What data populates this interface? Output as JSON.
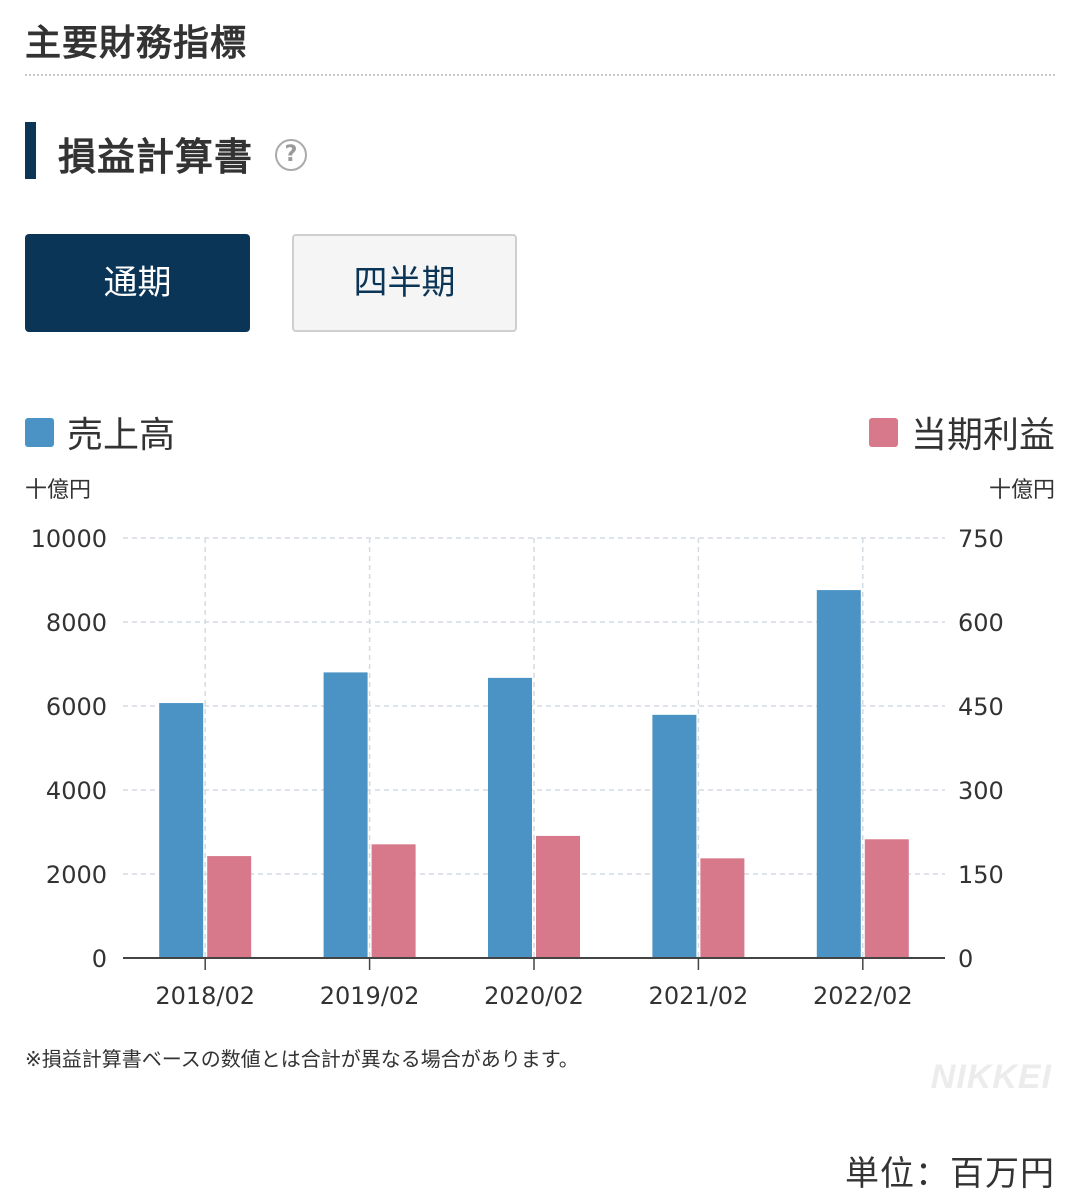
{
  "page_title": "主要財務指標",
  "section": {
    "title": "損益計算書",
    "help_icon": "help-question-icon"
  },
  "tabs": [
    {
      "label": "通期",
      "active": true
    },
    {
      "label": "四半期",
      "active": false
    }
  ],
  "colors": {
    "sales": "#4a93c4",
    "profit": "#d7798a",
    "navy": "#0b3557"
  },
  "footnote": "※損益計算書ベースの数値とは合計が異なる場合があります。",
  "logo_text": "NIKKEI",
  "unit_note": "単位：百万円",
  "chart_data": {
    "type": "bar",
    "categories": [
      "2018/02",
      "2019/02",
      "2020/02",
      "2021/02",
      "2022/02"
    ],
    "series": [
      {
        "name": "売上高",
        "axis": "left",
        "values": [
          6070,
          6800,
          6670,
          5790,
          8760
        ]
      },
      {
        "name": "当期利益",
        "axis": "right",
        "values": [
          182,
          203,
          218,
          178,
          212
        ]
      }
    ],
    "left_axis": {
      "unit": "十億円",
      "ylim": [
        0,
        10000
      ],
      "ticks": [
        "10000",
        "8000",
        "6000",
        "4000",
        "2000",
        "0"
      ]
    },
    "right_axis": {
      "unit": "十億円",
      "ylim": [
        0,
        750
      ],
      "ticks": [
        "750",
        "600",
        "450",
        "300",
        "150",
        "0"
      ]
    },
    "legend": [
      "売上高",
      "当期利益"
    ],
    "grid": true
  }
}
